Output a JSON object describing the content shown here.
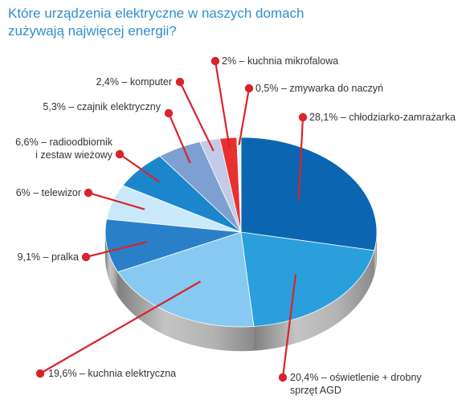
{
  "title": {
    "line1": "Które urządzenia elektryczne w naszych domach",
    "line2": "zużywają najwięcej energii?"
  },
  "colors": {
    "title": "#2e8fd0",
    "leader": "#d9232e",
    "label_text": "#333333",
    "side_shadow": "#a9a9a9"
  },
  "chart_data": {
    "type": "pie",
    "style": "3d",
    "start": "12 o'clock",
    "direction": "clockwise",
    "slices": [
      {
        "label": "28,1% – chłodziarko-zamrażarka",
        "value": 28.1,
        "color": "#0b65b1",
        "label_lines": [
          "28,1% – chłodziarko-zamrażarka"
        ]
      },
      {
        "label": "20,4% – oświetlenie + drobny sprzęt AGD",
        "value": 20.4,
        "color": "#2b9fdb",
        "label_lines": [
          "20,4% – oświetlenie + drobny",
          "sprzęt AGD"
        ]
      },
      {
        "label": "19,6% – kuchnia elektryczna",
        "value": 19.6,
        "color": "#87c9f1",
        "label_lines": [
          "19,6% – kuchnia elektryczna"
        ]
      },
      {
        "label": "9,1% – pralka",
        "value": 9.1,
        "color": "#2a80c8",
        "label_lines": [
          "9,1% – pralka"
        ]
      },
      {
        "label": "6% – telewizor",
        "value": 6.0,
        "color": "#c9e9fb",
        "label_lines": [
          "6% – telewizor"
        ]
      },
      {
        "label": "6,6% – radioodbiornik i zestaw wieżowy",
        "value": 6.6,
        "color": "#1b86cc",
        "label_lines": [
          "6,6% – radioodbiornik",
          "i zestaw wieżowy"
        ]
      },
      {
        "label": "5,3% – czajnik elektryczny",
        "value": 5.3,
        "color": "#7e9fd2",
        "label_lines": [
          "5,3% – czajnik elektryczny"
        ]
      },
      {
        "label": "2,4% – komputer",
        "value": 2.4,
        "color": "#c3cbe8",
        "label_lines": [
          "2,4% – komputer"
        ]
      },
      {
        "label": "2% – kuchnia mikrofalowa",
        "value": 2.0,
        "color": "#e8312f",
        "label_lines": [
          "2% – kuchnia mikrofalowa"
        ]
      },
      {
        "label": "0,5% – zmywarka do naczyń",
        "value": 0.5,
        "color": "#eef4fb",
        "label_lines": [
          "0,5% – zmywarka do naczyń"
        ]
      }
    ]
  }
}
